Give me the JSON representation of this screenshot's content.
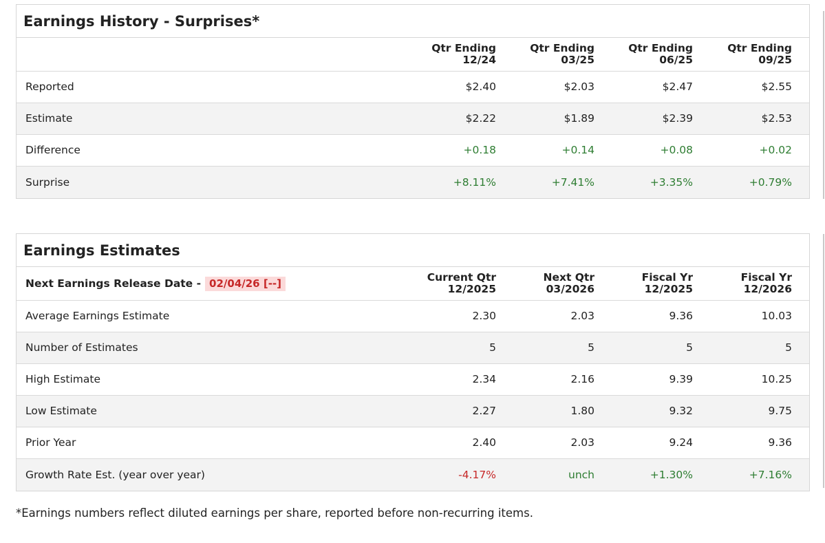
{
  "history": {
    "title": "Earnings History - Surprises*",
    "columns": [
      {
        "line1": "Qtr Ending",
        "line2": "12/24"
      },
      {
        "line1": "Qtr Ending",
        "line2": "03/25"
      },
      {
        "line1": "Qtr Ending",
        "line2": "06/25"
      },
      {
        "line1": "Qtr Ending",
        "line2": "09/25"
      }
    ],
    "rows": [
      {
        "label": "Reported",
        "values": [
          "$2.40",
          "$2.03",
          "$2.47",
          "$2.55"
        ]
      },
      {
        "label": "Estimate",
        "values": [
          "$2.22",
          "$1.89",
          "$2.39",
          "$2.53"
        ]
      },
      {
        "label": "Difference",
        "values": [
          "+0.18",
          "+0.14",
          "+0.08",
          "+0.02"
        ]
      },
      {
        "label": "Surprise",
        "values": [
          "+8.11%",
          "+7.41%",
          "+3.35%",
          "+0.79%"
        ]
      }
    ]
  },
  "estimates": {
    "title": "Earnings Estimates",
    "release_label": "Next Earnings Release Date -",
    "release_date": "02/04/26 [--]",
    "columns": [
      {
        "line1": "Current Qtr",
        "line2": "12/2025"
      },
      {
        "line1": "Next Qtr",
        "line2": "03/2026"
      },
      {
        "line1": "Fiscal Yr",
        "line2": "12/2025"
      },
      {
        "line1": "Fiscal Yr",
        "line2": "12/2026"
      }
    ],
    "rows": [
      {
        "label": "Average Earnings Estimate",
        "values": [
          "2.30",
          "2.03",
          "9.36",
          "10.03"
        ]
      },
      {
        "label": "Number of Estimates",
        "values": [
          "5",
          "5",
          "5",
          "5"
        ]
      },
      {
        "label": "High Estimate",
        "values": [
          "2.34",
          "2.16",
          "9.39",
          "10.25"
        ]
      },
      {
        "label": "Low Estimate",
        "values": [
          "2.27",
          "1.80",
          "9.32",
          "9.75"
        ]
      },
      {
        "label": "Prior Year",
        "values": [
          "2.40",
          "2.03",
          "9.24",
          "9.36"
        ]
      },
      {
        "label": "Growth Rate Est. (year over year)",
        "values": [
          "-4.17%",
          "unch",
          "+1.30%",
          "+7.16%"
        ]
      }
    ]
  },
  "footnote": "*Earnings numbers reflect diluted earnings per share, reported before non-recurring items.",
  "colors": {
    "positive": "#2e7d32",
    "negative": "#c62828",
    "release_bg": "#fbdada"
  }
}
